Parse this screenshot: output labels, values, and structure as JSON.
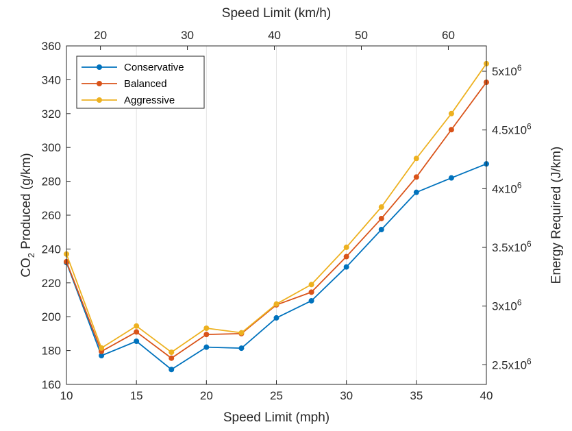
{
  "chart_data": {
    "type": "line",
    "x": [
      10,
      12.5,
      15,
      17.5,
      20,
      22.5,
      25,
      27.5,
      30,
      32.5,
      35,
      37.5,
      40
    ],
    "series": [
      {
        "name": "Conservative",
        "color": "#0072BD",
        "values": [
          232,
          177,
          185.5,
          168.8,
          182,
          181.4,
          199.3,
          209.4,
          229.4,
          251.5,
          273.5,
          282,
          290.3
        ]
      },
      {
        "name": "Balanced",
        "color": "#D95319",
        "values": [
          232.5,
          179.5,
          191,
          175.5,
          189.5,
          190,
          207,
          214.5,
          235.5,
          258,
          282.5,
          310.5,
          338.5
        ]
      },
      {
        "name": "Aggressive",
        "color": "#EDB120",
        "values": [
          237,
          181.5,
          194.5,
          179,
          193.2,
          190.5,
          207.5,
          219,
          241,
          264.8,
          293.5,
          320,
          349.5
        ]
      }
    ],
    "xlabel": "Speed Limit (mph)",
    "xlim": [
      10,
      40
    ],
    "xticks": [
      "10",
      "15",
      "20",
      "25",
      "30",
      "35",
      "40"
    ],
    "ylabel_main": "CO",
    "ylabel_sub": "2",
    "ylabel_rest": " Produced (g/km)",
    "ylim": [
      160,
      360
    ],
    "yticks": [
      "160",
      "180",
      "200",
      "220",
      "240",
      "260",
      "280",
      "300",
      "320",
      "340",
      "360"
    ],
    "top_xlabel": "Speed Limit (km/h)",
    "top_xticks": [
      {
        "value": 20,
        "label": "20"
      },
      {
        "value": 30,
        "label": "30"
      },
      {
        "value": 40,
        "label": "40"
      },
      {
        "value": 50,
        "label": "50"
      },
      {
        "value": 60,
        "label": "60"
      }
    ],
    "right_ylabel": "Energy Required (J/km)",
    "right_yticks": [
      {
        "value": 2500000,
        "base": "2.5x10",
        "exp": "6"
      },
      {
        "value": 3000000,
        "base": "3x10",
        "exp": "6"
      },
      {
        "value": 3500000,
        "base": "3.5x10",
        "exp": "6"
      },
      {
        "value": 4000000,
        "base": "4x10",
        "exp": "6"
      },
      {
        "value": 4500000,
        "base": "4.5x10",
        "exp": "6"
      },
      {
        "value": 5000000,
        "base": "5x10",
        "exp": "6"
      }
    ],
    "grid": "vertical",
    "legend_position": "top-left"
  }
}
